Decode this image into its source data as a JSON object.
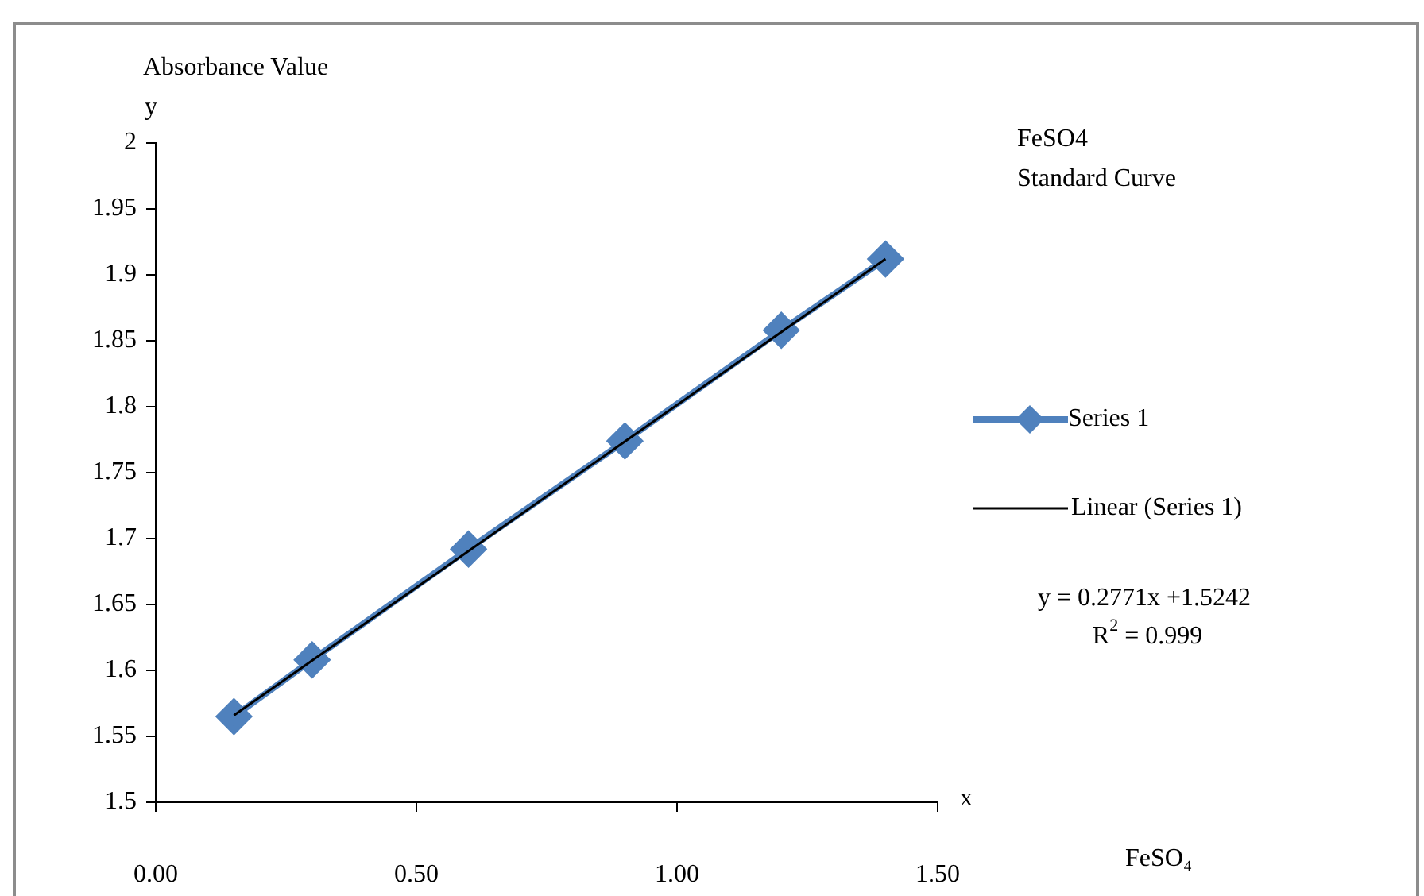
{
  "chart_data": {
    "type": "line",
    "title": "FeSO4\nStandard Curve",
    "ylabel": "Absorbance Value",
    "annotations": [
      "y",
      "x",
      "y = 0.2771x +1.5242",
      "R$^{2}$ = 0.999",
      "FeSO₄"
    ],
    "x": [
      0.15,
      0.3,
      0.6,
      0.9,
      1.2,
      1.4
    ],
    "series": [
      {
        "name": "Series 1",
        "color": "#4f81bd",
        "values": [
          1.565,
          1.608,
          1.692,
          1.774,
          1.858,
          1.912
        ],
        "marker": "diamond"
      },
      {
        "name": "Linear (Series 1)",
        "type": "line",
        "color": "#000000",
        "x": [
          0.15,
          1.4
        ],
        "values": [
          1.566,
          1.912
        ],
        "marker": "none"
      }
    ],
    "xlim": [
      0,
      1.5
    ],
    "xticks": [
      {
        "value": 0,
        "label": "0.00"
      },
      {
        "value": 0.5,
        "label": "0.50"
      },
      {
        "value": 1,
        "label": "1.00"
      },
      {
        "value": 1.5,
        "label": "1.50"
      }
    ],
    "ylim": [
      1.5,
      2
    ],
    "yticks": [
      1.5,
      1.55,
      1.6,
      1.65,
      1.7,
      1.75,
      1.8,
      1.85,
      1.9,
      1.95,
      2
    ],
    "grid": false,
    "legend": "right"
  }
}
